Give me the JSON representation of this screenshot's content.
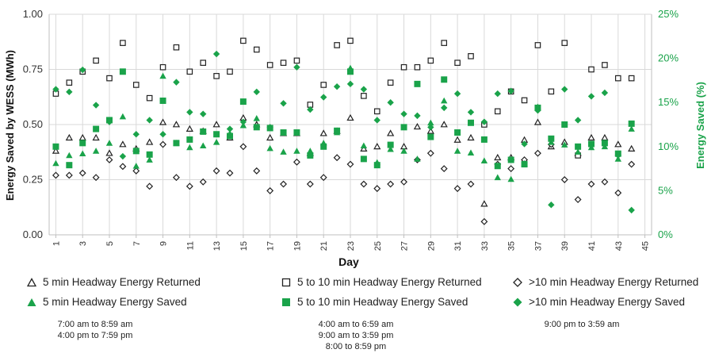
{
  "chart_data": {
    "type": "scatter",
    "xlabel": "Day",
    "ylabel_left": "Energy Saved by WESS  (MWh)",
    "ylabel_right": "Energy Saved (%)",
    "x_ticks": [
      "1",
      "3",
      "5",
      "7",
      "9",
      "11",
      "13",
      "15",
      "17",
      "19",
      "21",
      "23",
      "25",
      "27",
      "29",
      "31",
      "33",
      "35",
      "37",
      "39",
      "41",
      "43",
      "45"
    ],
    "ylim_left": [
      0,
      1.0
    ],
    "yticks_left": [
      "0.00",
      "0.25",
      "0.50",
      "0.75",
      "1.00"
    ],
    "ylim_right": [
      0,
      25
    ],
    "yticks_right": [
      "0%",
      "5%",
      "10%",
      "15%",
      "20%",
      "25%"
    ],
    "xlim": [
      0.5,
      45.5
    ],
    "series": [
      {
        "name": "5 min Headway Energy Returned",
        "axis": "left",
        "marker": "triangle-open",
        "color": "#222222",
        "x": [
          1,
          2,
          3,
          4,
          5,
          6,
          7,
          8,
          9,
          10,
          11,
          12,
          13,
          14,
          15,
          16,
          17,
          18,
          19,
          20,
          21,
          22,
          23,
          24,
          25,
          26,
          27,
          28,
          29,
          30,
          31,
          32,
          33,
          34,
          35,
          36,
          37,
          38,
          39,
          40,
          41,
          42,
          43,
          44
        ],
        "y": [
          0.38,
          0.44,
          0.44,
          0.44,
          0.37,
          0.41,
          0.39,
          0.42,
          0.51,
          0.5,
          0.48,
          0.47,
          0.5,
          0.44,
          0.53,
          0.5,
          0.44,
          0.46,
          0.46,
          0.37,
          0.46,
          0.47,
          0.53,
          0.39,
          0.4,
          0.46,
          0.4,
          0.49,
          0.47,
          0.5,
          0.43,
          0.44,
          0.14,
          0.35,
          0.35,
          0.43,
          0.51,
          0.4,
          0.42,
          0.37,
          0.44,
          0.44,
          0.41,
          0.39
        ]
      },
      {
        "name": "5 to 10 min Headway Energy Returned",
        "axis": "left",
        "marker": "square-open",
        "color": "#222222",
        "x": [
          1,
          2,
          3,
          4,
          5,
          6,
          7,
          8,
          9,
          10,
          11,
          12,
          13,
          14,
          15,
          16,
          17,
          18,
          19,
          20,
          21,
          22,
          23,
          24,
          25,
          26,
          27,
          28,
          29,
          30,
          31,
          32,
          33,
          34,
          35,
          36,
          37,
          38,
          39,
          40,
          41,
          42,
          43,
          44
        ],
        "y": [
          0.64,
          0.69,
          0.74,
          0.79,
          0.71,
          0.87,
          0.68,
          0.62,
          0.76,
          0.85,
          0.74,
          0.78,
          0.72,
          0.74,
          0.88,
          0.84,
          0.77,
          0.78,
          0.79,
          0.59,
          0.68,
          0.86,
          0.88,
          0.63,
          0.56,
          0.69,
          0.76,
          0.76,
          0.79,
          0.87,
          0.78,
          0.81,
          0.5,
          0.56,
          0.65,
          0.61,
          0.86,
          0.65,
          0.87,
          0.36,
          0.75,
          0.77,
          0.71,
          0.71
        ]
      },
      {
        "name": ">10 min Headway Energy Returned",
        "axis": "left",
        "marker": "diamond-open",
        "color": "#222222",
        "x": [
          1,
          2,
          3,
          4,
          5,
          6,
          7,
          8,
          9,
          10,
          11,
          12,
          13,
          14,
          15,
          16,
          17,
          18,
          19,
          20,
          21,
          22,
          23,
          24,
          25,
          26,
          27,
          28,
          29,
          30,
          31,
          32,
          33,
          34,
          35,
          36,
          37,
          38,
          39,
          40,
          41,
          42,
          43,
          44
        ],
        "y": [
          0.27,
          0.27,
          0.28,
          0.26,
          0.34,
          0.31,
          0.29,
          0.22,
          0.41,
          0.26,
          0.22,
          0.24,
          0.29,
          0.28,
          0.4,
          0.29,
          0.2,
          0.23,
          0.33,
          0.23,
          0.26,
          0.35,
          0.32,
          0.23,
          0.21,
          0.23,
          0.24,
          0.34,
          0.37,
          0.3,
          0.21,
          0.23,
          0.06,
          0.32,
          0.3,
          0.34,
          0.37,
          0.41,
          0.25,
          0.16,
          0.23,
          0.24,
          0.19,
          0.32
        ]
      },
      {
        "name": "5 min Headway Energy Saved",
        "axis": "right",
        "marker": "triangle",
        "color": "#1aa34a",
        "x": [
          1,
          2,
          3,
          4,
          5,
          6,
          7,
          8,
          9,
          10,
          11,
          12,
          13,
          14,
          15,
          16,
          17,
          18,
          19,
          20,
          21,
          22,
          23,
          24,
          25,
          26,
          27,
          28,
          29,
          30,
          31,
          32,
          33,
          34,
          35,
          36,
          37,
          38,
          39,
          40,
          41,
          42,
          43,
          44
        ],
        "y": [
          8.1,
          9,
          9.2,
          9.5,
          10.4,
          13.4,
          7.8,
          8.5,
          18,
          10.4,
          9.9,
          10.1,
          10.5,
          11.5,
          12.4,
          13.2,
          9.8,
          9.4,
          9.5,
          9.5,
          10.4,
          11.6,
          18.9,
          10.1,
          8.2,
          9.7,
          9.5,
          8.6,
          12.7,
          15.2,
          9.5,
          9.3,
          8.4,
          6.5,
          6.3,
          8.1,
          14.5,
          10.5,
          10.2,
          9.4,
          9.9,
          10,
          8.6,
          12
        ]
      },
      {
        "name": "5 to 10 min Headway Energy Saved",
        "axis": "right",
        "marker": "square",
        "color": "#1aa34a",
        "x": [
          1,
          2,
          3,
          4,
          5,
          6,
          7,
          8,
          9,
          10,
          11,
          12,
          13,
          14,
          15,
          16,
          17,
          18,
          19,
          20,
          21,
          22,
          23,
          24,
          25,
          26,
          27,
          28,
          29,
          30,
          31,
          32,
          33,
          34,
          35,
          36,
          37,
          38,
          39,
          40,
          41,
          42,
          43,
          44
        ],
        "y": [
          10,
          7.9,
          10.4,
          12,
          13,
          18.5,
          9.5,
          9.1,
          15.2,
          10.4,
          10.8,
          11.7,
          11.4,
          11.2,
          15.1,
          12.2,
          12.1,
          11.6,
          11.6,
          9,
          10,
          11.8,
          18.5,
          8.6,
          7.9,
          10.2,
          12.2,
          17.1,
          11.1,
          17.6,
          11.6,
          12.7,
          10.8,
          7.8,
          8.5,
          8,
          14.4,
          10.9,
          12.5,
          10,
          10.3,
          10.4,
          9.2,
          12.6
        ]
      },
      {
        "name": ">10 min Headway Energy Saved",
        "axis": "right",
        "marker": "diamond",
        "color": "#1aa34a",
        "x": [
          1,
          2,
          3,
          4,
          5,
          6,
          7,
          8,
          9,
          10,
          11,
          12,
          13,
          14,
          15,
          16,
          17,
          18,
          19,
          20,
          21,
          22,
          23,
          24,
          25,
          26,
          27,
          28,
          29,
          30,
          31,
          32,
          33,
          34,
          35,
          36,
          37,
          38,
          39,
          40,
          41,
          42,
          43,
          44
        ],
        "y": [
          16.5,
          16.2,
          18.7,
          14.7,
          12.8,
          8.9,
          11.4,
          13,
          11.4,
          17.3,
          13.9,
          13.7,
          20.5,
          12,
          12.8,
          16.2,
          12.2,
          14.9,
          19,
          14.2,
          15.6,
          16.8,
          17.1,
          16.5,
          13,
          15,
          13.7,
          13.5,
          12.2,
          14.4,
          16,
          13.9,
          12.8,
          16,
          16.3,
          10.3,
          14.1,
          3.4,
          16.5,
          13,
          15.7,
          16.1,
          9,
          2.8
        ]
      }
    ]
  },
  "legend": [
    {
      "label": "5 min Headway Energy Returned",
      "marker": "triangle-open",
      "color": "#222222"
    },
    {
      "label": "5 to 10 min Headway Energy Returned",
      "marker": "square-open",
      "color": "#222222"
    },
    {
      "label": ">10 min Headway Energy Returned",
      "marker": "diamond-open",
      "color": "#222222"
    },
    {
      "label": "5 min Headway Energy Saved",
      "marker": "triangle",
      "color": "#1aa34a"
    },
    {
      "label": "5 to 10 min Headway Energy Saved",
      "marker": "square",
      "color": "#1aa34a"
    },
    {
      "label": ">10 min Headway Energy Saved",
      "marker": "diamond",
      "color": "#1aa34a"
    }
  ],
  "notes": {
    "group1": [
      "7:00 am to 8:59 am",
      "4:00 pm to 7:59 pm"
    ],
    "group2": [
      "4:00 am to 6:59 am",
      "9:00 am to 3:59 pm",
      "8:00 to 8:59 pm"
    ],
    "group3": [
      "9:00 pm to 3:59 am"
    ]
  }
}
